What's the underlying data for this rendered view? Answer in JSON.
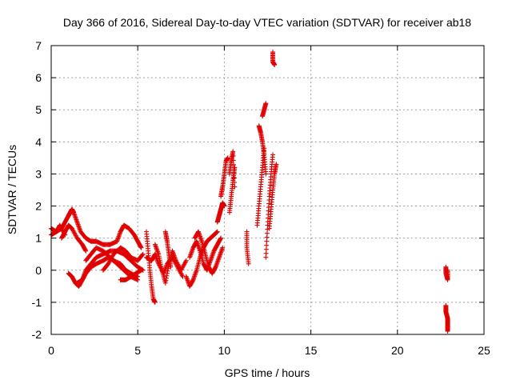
{
  "chart_data": {
    "type": "scatter",
    "title": "Day 366 of 2016, Sidereal Day-to-day VTEC variation (SDTVAR) for receiver ab18",
    "xlabel": "GPS time / hours",
    "ylabel": "SDTVAR / TECUs",
    "xlim": [
      0,
      25
    ],
    "ylim": [
      -2,
      7
    ],
    "xticks": [
      0,
      5,
      10,
      15,
      20,
      25
    ],
    "yticks": [
      -2,
      -1,
      0,
      1,
      2,
      3,
      4,
      5,
      6,
      7
    ],
    "xtick_labels": [
      "0",
      "5",
      "10",
      "15",
      "20",
      "25"
    ],
    "ytick_labels": [
      "-2",
      "-1",
      "0",
      "1",
      "2",
      "3",
      "4",
      "5",
      "6",
      "7"
    ],
    "grid": true,
    "marker": "+",
    "color": "#e00000",
    "series": [
      {
        "name": "ab18",
        "segments": [
          {
            "x": [
              0.0,
              0.3,
              0.5,
              0.8
            ],
            "y": [
              1.3,
              1.2,
              1.4,
              1.1
            ]
          },
          {
            "x": [
              0.0,
              0.3,
              0.6,
              0.8,
              1.0,
              1.1,
              1.2,
              1.3,
              1.5,
              1.7,
              2.0,
              2.3,
              2.6,
              3.0,
              3.4,
              3.8,
              4.0,
              4.2,
              4.5,
              4.8,
              5.0,
              5.2
            ],
            "y": [
              1.1,
              1.2,
              1.3,
              1.5,
              1.7,
              1.8,
              1.9,
              1.8,
              1.5,
              1.2,
              1.0,
              0.9,
              0.9,
              0.8,
              0.8,
              0.9,
              1.2,
              1.4,
              1.3,
              1.1,
              0.9,
              0.7
            ]
          },
          {
            "x": [
              0.6,
              0.8,
              1.0,
              1.2,
              1.5,
              1.8,
              2.0
            ],
            "y": [
              1.0,
              1.2,
              1.4,
              1.3,
              1.0,
              0.8,
              0.6
            ]
          },
          {
            "x": [
              1.0,
              1.2,
              1.4,
              1.6,
              1.8,
              2.0,
              2.3,
              2.6,
              3.0,
              3.4,
              3.8,
              4.2,
              4.6,
              5.0,
              5.3
            ],
            "y": [
              -0.1,
              -0.2,
              -0.4,
              -0.5,
              -0.3,
              0.0,
              0.2,
              0.4,
              0.5,
              0.6,
              0.6,
              0.5,
              0.3,
              0.1,
              0.0
            ]
          },
          {
            "x": [
              1.5,
              1.8,
              2.0,
              2.3,
              2.6,
              3.0,
              3.3,
              3.6,
              4.0,
              4.3,
              4.6,
              5.0
            ],
            "y": [
              -0.4,
              -0.3,
              -0.1,
              0.1,
              0.2,
              0.3,
              0.4,
              0.3,
              0.2,
              0.0,
              -0.1,
              -0.2
            ]
          },
          {
            "x": [
              2.0,
              2.3,
              2.6,
              3.0,
              3.4,
              3.8,
              4.2,
              4.6,
              5.0
            ],
            "y": [
              0.3,
              0.5,
              0.7,
              0.6,
              0.4,
              0.2,
              0.0,
              -0.2,
              -0.3
            ]
          },
          {
            "x": [
              3.0,
              3.3,
              3.6,
              4.0,
              4.3,
              4.6,
              5.0,
              5.3
            ],
            "y": [
              0.0,
              0.2,
              0.5,
              0.7,
              0.6,
              0.4,
              0.3,
              0.5
            ]
          },
          {
            "x": [
              4.0,
              4.3,
              4.6,
              4.9,
              5.2
            ],
            "y": [
              -0.3,
              -0.3,
              -0.2,
              -0.1,
              0.0
            ]
          },
          {
            "x": [
              5.5,
              5.6,
              5.7,
              5.8,
              5.9,
              6.0
            ],
            "y": [
              1.2,
              0.6,
              0.0,
              -0.5,
              -0.9,
              -1.0
            ]
          },
          {
            "x": [
              5.5,
              5.8,
              6.0,
              6.2,
              6.5,
              6.7,
              7.0,
              7.3,
              7.6
            ],
            "y": [
              0.4,
              0.3,
              0.5,
              0.2,
              -0.1,
              0.2,
              0.4,
              0.1,
              -0.2
            ]
          },
          {
            "x": [
              6.0,
              6.2,
              6.4,
              6.6,
              6.8,
              7.0,
              7.2,
              7.5,
              7.8
            ],
            "y": [
              0.8,
              0.5,
              0.0,
              -0.4,
              0.2,
              0.6,
              0.3,
              0.0,
              0.3
            ]
          },
          {
            "x": [
              6.6,
              6.7,
              6.8,
              6.9
            ],
            "y": [
              1.2,
              0.9,
              0.5,
              0.1
            ]
          },
          {
            "x": [
              7.8,
              8.0,
              8.2,
              8.4,
              8.6,
              8.8,
              9.0,
              9.2,
              9.4,
              9.6
            ],
            "y": [
              -0.2,
              -0.5,
              -0.3,
              0.0,
              0.4,
              0.7,
              0.9,
              1.0,
              1.1,
              1.2
            ]
          },
          {
            "x": [
              8.0,
              8.2,
              8.4,
              8.6,
              8.8,
              9.0,
              9.2,
              9.4,
              9.6,
              9.8
            ],
            "y": [
              0.4,
              0.7,
              0.9,
              0.6,
              0.2,
              0.0,
              0.3,
              0.6,
              0.8,
              1.0
            ]
          },
          {
            "x": [
              8.3,
              8.5,
              8.7,
              8.9,
              9.1,
              9.3,
              9.5,
              9.7,
              9.9
            ],
            "y": [
              1.0,
              1.2,
              0.9,
              0.5,
              0.1,
              -0.1,
              0.1,
              0.4,
              0.7
            ]
          },
          {
            "x": [
              9.6,
              9.7,
              9.8,
              9.9,
              10.0
            ],
            "y": [
              1.5,
              1.7,
              1.9,
              2.1,
              2.0
            ]
          },
          {
            "x": [
              9.8,
              9.9,
              10.0,
              10.1,
              10.2
            ],
            "y": [
              2.3,
              2.6,
              3.0,
              3.4,
              3.5
            ]
          },
          {
            "x": [
              10.3,
              10.4,
              10.5,
              10.6
            ],
            "y": [
              1.8,
              2.3,
              2.8,
              3.2
            ]
          },
          {
            "x": [
              10.3,
              10.4,
              10.5,
              10.6
            ],
            "y": [
              3.0,
              3.4,
              3.7,
              2.6
            ]
          },
          {
            "x": [
              11.3,
              11.3,
              11.4
            ],
            "y": [
              1.2,
              0.7,
              0.2
            ]
          },
          {
            "x": [
              11.9,
              12.0,
              12.1,
              12.2,
              12.3
            ],
            "y": [
              1.4,
              2.0,
              2.6,
              3.2,
              3.8
            ]
          },
          {
            "x": [
              12.0,
              12.1,
              12.2,
              12.3,
              12.4
            ],
            "y": [
              4.5,
              4.3,
              4.0,
              3.6,
              3.0
            ]
          },
          {
            "x": [
              12.2,
              12.3,
              12.4
            ],
            "y": [
              4.8,
              5.0,
              5.2
            ]
          },
          {
            "x": [
              12.4,
              12.5,
              12.6,
              12.7,
              12.8
            ],
            "y": [
              0.4,
              1.4,
              2.3,
              3.0,
              3.6
            ]
          },
          {
            "x": [
              12.6,
              12.7,
              12.8,
              12.9,
              13.0
            ],
            "y": [
              1.3,
              1.9,
              2.5,
              3.0,
              3.3
            ]
          },
          {
            "x": [
              12.8,
              12.8,
              12.9
            ],
            "y": [
              6.8,
              6.5,
              6.4
            ]
          },
          {
            "x": [
              22.8,
              22.8,
              22.9,
              22.9
            ],
            "y": [
              0.1,
              -0.1,
              -0.3,
              0.0
            ]
          },
          {
            "x": [
              22.8,
              22.8,
              22.9,
              22.9,
              22.9
            ],
            "y": [
              -1.1,
              -1.3,
              -1.5,
              -1.7,
              -1.9
            ]
          }
        ]
      }
    ]
  }
}
